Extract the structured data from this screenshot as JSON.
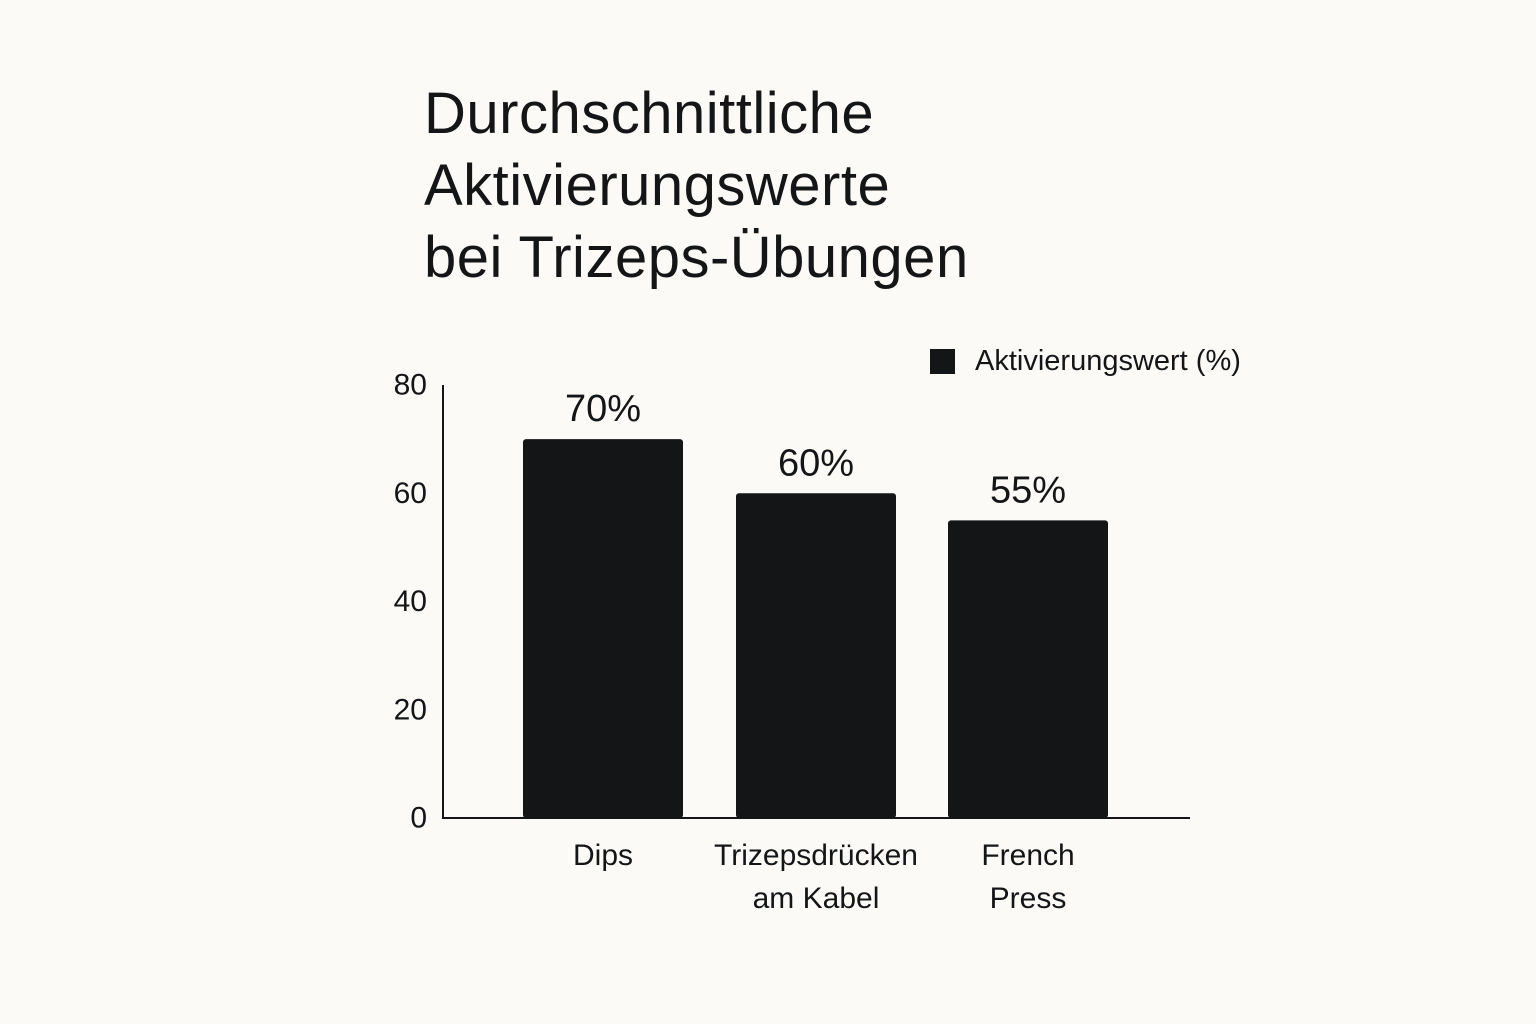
{
  "title_lines": [
    "Durchschnittliche",
    "Aktivierungswerte",
    "bei Trizeps-Übungen"
  ],
  "legend": {
    "label": "Aktivierungswert (%)"
  },
  "colors": {
    "background": "#fbfaf7",
    "bar": "#141517",
    "text": "#141517"
  },
  "chart_data": {
    "type": "bar",
    "title": "Durchschnittliche Aktivierungswerte bei Trizeps-Übungen",
    "categories": [
      [
        "Dips"
      ],
      [
        "Trizepsdrücken",
        "am Kabel"
      ],
      [
        "French",
        "Press"
      ]
    ],
    "series": [
      {
        "name": "Aktivierungswert (%)",
        "values": [
          70,
          60,
          55
        ],
        "data_labels": [
          "70%",
          "60%",
          "55%"
        ]
      }
    ],
    "y_ticks": [
      "0",
      "20",
      "40",
      "60",
      "80"
    ],
    "ylim": [
      0,
      80
    ],
    "xlabel": "",
    "ylabel": "",
    "grid": false,
    "legend_position": "top-right"
  }
}
